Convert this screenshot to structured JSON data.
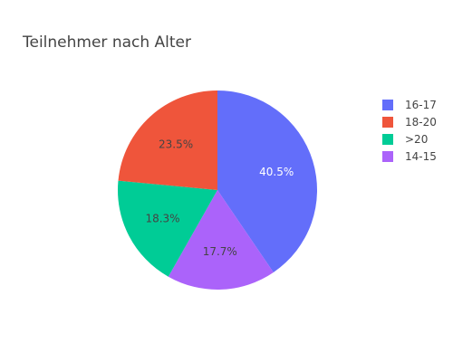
{
  "chart_data": {
    "type": "pie",
    "title": "Teilnehmer nach Alter",
    "slices": [
      {
        "label": "16-17",
        "percent": 40.5,
        "percent_label": "40.5%",
        "color": "#636efa",
        "text_color": "#ffffff"
      },
      {
        "label": "14-15",
        "percent": 17.7,
        "percent_label": "17.7%",
        "color": "#ab63fa",
        "text_color": "#444444"
      },
      {
        "label": ">20",
        "percent": 18.3,
        "percent_label": "18.3%",
        "color": "#00cc96",
        "text_color": "#444444"
      },
      {
        "label": "18-20",
        "percent": 23.5,
        "percent_label": "23.5%",
        "color": "#ef553b",
        "text_color": "#444444"
      }
    ],
    "legend": {
      "position": "top-right",
      "items": [
        {
          "label": "16-17",
          "color": "#636efa"
        },
        {
          "label": "18-20",
          "color": "#ef553b"
        },
        {
          "label": ">20",
          "color": "#00cc96"
        },
        {
          "label": "14-15",
          "color": "#ab63fa"
        }
      ]
    },
    "direction": "clockwise",
    "start_angle": "12 o'clock"
  }
}
